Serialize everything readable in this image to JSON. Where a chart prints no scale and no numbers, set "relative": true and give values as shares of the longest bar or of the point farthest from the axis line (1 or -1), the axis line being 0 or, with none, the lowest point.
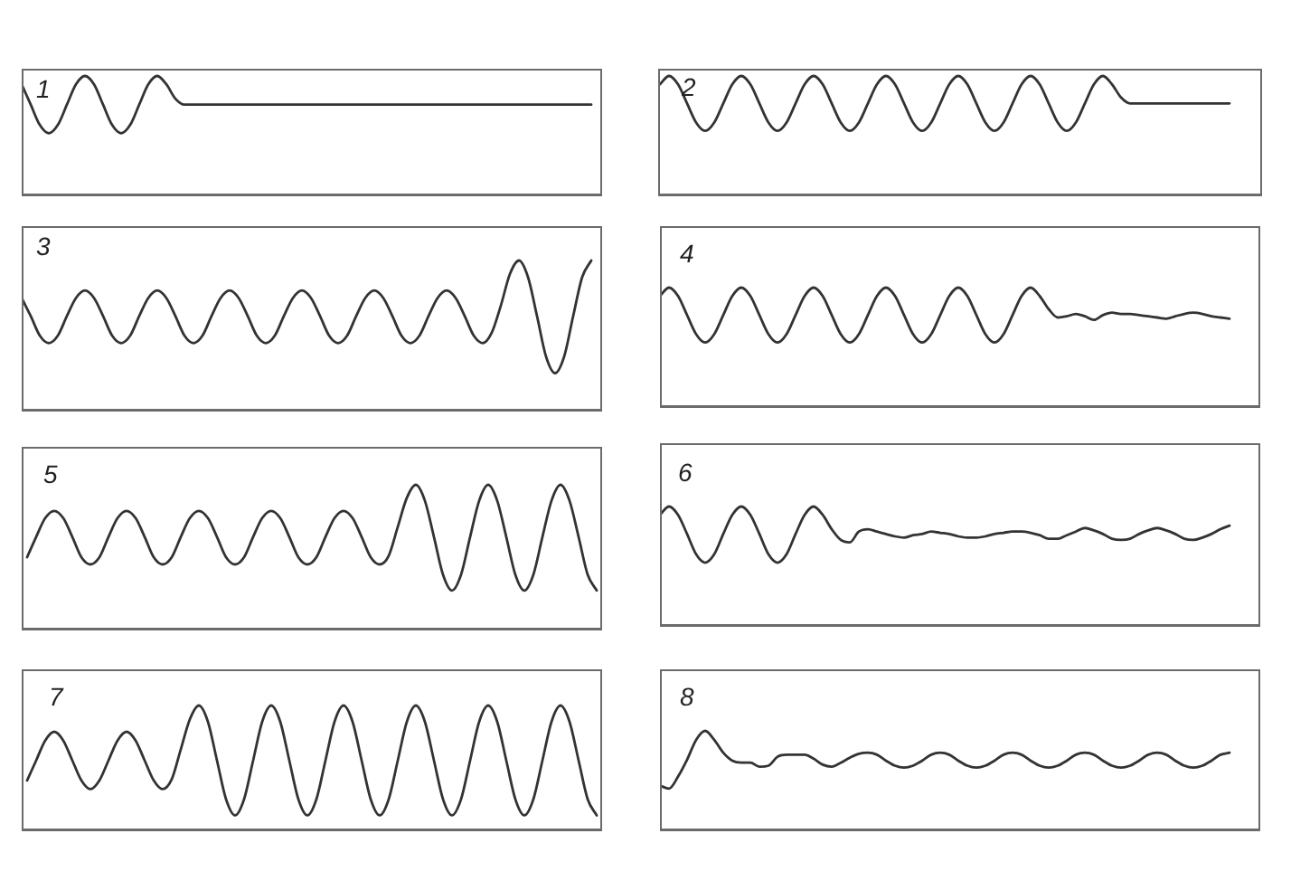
{
  "chart_data": [
    {
      "type": "line",
      "title": "1",
      "relative": true,
      "color": "#333333",
      "categories": [
        null,
        null,
        null,
        null,
        null,
        null,
        null,
        null,
        null,
        null,
        null,
        null,
        null,
        null,
        null,
        null,
        null,
        null,
        null,
        null,
        null,
        null,
        null,
        null,
        null,
        null,
        null,
        null,
        null,
        null,
        null,
        null,
        null,
        null,
        null,
        null,
        null,
        null,
        null,
        null,
        null,
        null,
        null,
        null,
        null,
        null,
        null,
        null,
        null,
        null,
        null,
        null,
        null,
        null,
        null,
        null,
        null,
        null,
        null,
        null,
        null,
        null,
        null,
        null
      ],
      "values": [
        0.93,
        0.76,
        0.59,
        0.52,
        0.59,
        0.76,
        0.93,
        1,
        0.93,
        0.76,
        0.59,
        0.52,
        0.59,
        0.76,
        0.93,
        1,
        0.93,
        0.81,
        0.76,
        0.76,
        0.76,
        0.76,
        0.76,
        0.76,
        0.76,
        0.76,
        0.76,
        0.76,
        0.76,
        0.76,
        0.76,
        0.76,
        0.76,
        0.76,
        0.76,
        0.76,
        0.76,
        0.76,
        0.76,
        0.76,
        0.76,
        0.76,
        0.76,
        0.76,
        0.76,
        0.76,
        0.76,
        0.76,
        0.76,
        0.76,
        0.76,
        0.76,
        0.76,
        0.76,
        0.76,
        0.76,
        0.76,
        0.76,
        0.76,
        0.76,
        0.76,
        0.76,
        0.76,
        0.76
      ]
    },
    {
      "type": "line",
      "title": "2",
      "relative": true,
      "color": "#333333",
      "categories": [
        null,
        null,
        null,
        null,
        null,
        null,
        null,
        null,
        null,
        null,
        null,
        null,
        null,
        null,
        null,
        null,
        null,
        null,
        null,
        null,
        null,
        null,
        null,
        null,
        null,
        null,
        null,
        null,
        null,
        null,
        null,
        null,
        null,
        null,
        null,
        null,
        null,
        null,
        null,
        null,
        null,
        null,
        null,
        null,
        null,
        null,
        null,
        null,
        null,
        null,
        null,
        null,
        null,
        null,
        null,
        null,
        null,
        null,
        null,
        null,
        null,
        null,
        null,
        null
      ],
      "values": [
        0.93,
        1,
        0.93,
        0.77,
        0.61,
        0.54,
        0.61,
        0.77,
        0.93,
        1,
        0.93,
        0.77,
        0.61,
        0.54,
        0.61,
        0.77,
        0.93,
        1,
        0.93,
        0.77,
        0.61,
        0.54,
        0.61,
        0.77,
        0.93,
        1,
        0.93,
        0.77,
        0.61,
        0.54,
        0.61,
        0.77,
        0.93,
        1,
        0.93,
        0.77,
        0.61,
        0.54,
        0.61,
        0.77,
        0.93,
        1,
        0.93,
        0.77,
        0.61,
        0.54,
        0.61,
        0.77,
        0.93,
        1,
        0.93,
        0.82,
        0.77,
        0.77,
        0.77,
        0.77,
        0.77,
        0.77,
        0.77,
        0.77,
        0.77,
        0.77,
        0.77,
        0.77
      ]
    },
    {
      "type": "line",
      "title": "3",
      "relative": true,
      "color": "#333333",
      "categories": [
        null,
        null,
        null,
        null,
        null,
        null,
        null,
        null,
        null,
        null,
        null,
        null,
        null,
        null,
        null,
        null,
        null,
        null,
        null,
        null,
        null,
        null,
        null,
        null,
        null,
        null,
        null,
        null,
        null,
        null,
        null,
        null,
        null,
        null,
        null,
        null,
        null,
        null,
        null,
        null,
        null,
        null,
        null,
        null,
        null,
        null,
        null,
        null,
        null,
        null,
        null,
        null,
        null,
        null,
        null,
        null,
        null,
        null,
        null,
        null,
        null,
        null,
        null,
        null
      ],
      "values": [
        0.75,
        0.63,
        0.5,
        0.45,
        0.5,
        0.63,
        0.75,
        0.8,
        0.75,
        0.63,
        0.5,
        0.45,
        0.5,
        0.63,
        0.75,
        0.8,
        0.75,
        0.63,
        0.5,
        0.45,
        0.5,
        0.63,
        0.75,
        0.8,
        0.75,
        0.63,
        0.5,
        0.45,
        0.5,
        0.63,
        0.75,
        0.8,
        0.75,
        0.63,
        0.5,
        0.45,
        0.5,
        0.63,
        0.75,
        0.8,
        0.75,
        0.63,
        0.5,
        0.45,
        0.5,
        0.63,
        0.75,
        0.8,
        0.75,
        0.63,
        0.5,
        0.45,
        0.52,
        0.7,
        0.91,
        1,
        0.89,
        0.63,
        0.36,
        0.25,
        0.36,
        0.63,
        0.89,
        1
      ]
    },
    {
      "type": "line",
      "title": "4",
      "relative": true,
      "color": "#333333",
      "categories": [
        null,
        null,
        null,
        null,
        null,
        null,
        null,
        null,
        null,
        null,
        null,
        null,
        null,
        null,
        null,
        null,
        null,
        null,
        null,
        null,
        null,
        null,
        null,
        null,
        null,
        null,
        null,
        null,
        null,
        null,
        null,
        null,
        null,
        null,
        null,
        null,
        null,
        null,
        null,
        null,
        null,
        null,
        null,
        null,
        null,
        null,
        null,
        null,
        null,
        null,
        null,
        null,
        null,
        null,
        null,
        null,
        null,
        null,
        null,
        null,
        null,
        null,
        null,
        null
      ],
      "values": [
        0.93,
        1,
        0.93,
        0.77,
        0.61,
        0.54,
        0.61,
        0.77,
        0.93,
        1,
        0.93,
        0.77,
        0.61,
        0.54,
        0.61,
        0.77,
        0.93,
        1,
        0.93,
        0.77,
        0.61,
        0.54,
        0.61,
        0.77,
        0.93,
        1,
        0.93,
        0.77,
        0.61,
        0.54,
        0.61,
        0.77,
        0.93,
        1,
        0.93,
        0.77,
        0.61,
        0.54,
        0.61,
        0.77,
        0.93,
        1,
        0.93,
        0.82,
        0.75,
        0.76,
        0.78,
        0.76,
        0.73,
        0.77,
        0.79,
        0.78,
        0.78,
        0.77,
        0.76,
        0.75,
        0.74,
        0.76,
        0.78,
        0.79,
        0.78,
        0.76,
        0.75,
        0.74
      ]
    },
    {
      "type": "line",
      "title": "5",
      "relative": true,
      "color": "#333333",
      "categories": [
        null,
        null,
        null,
        null,
        null,
        null,
        null,
        null,
        null,
        null,
        null,
        null,
        null,
        null,
        null,
        null,
        null,
        null,
        null,
        null,
        null,
        null,
        null,
        null,
        null,
        null,
        null,
        null,
        null,
        null,
        null,
        null,
        null,
        null,
        null,
        null,
        null,
        null,
        null,
        null,
        null,
        null,
        null,
        null,
        null,
        null,
        null,
        null,
        null,
        null,
        null,
        null,
        null,
        null,
        null,
        null,
        null,
        null,
        null,
        null,
        null,
        null,
        null,
        null
      ],
      "values": [
        0.5,
        0.64,
        0.77,
        0.82,
        0.77,
        0.64,
        0.5,
        0.45,
        0.5,
        0.64,
        0.77,
        0.82,
        0.77,
        0.64,
        0.5,
        0.45,
        0.5,
        0.64,
        0.77,
        0.82,
        0.77,
        0.64,
        0.5,
        0.45,
        0.5,
        0.64,
        0.77,
        0.82,
        0.77,
        0.64,
        0.5,
        0.45,
        0.5,
        0.64,
        0.77,
        0.82,
        0.77,
        0.64,
        0.5,
        0.45,
        0.51,
        0.71,
        0.91,
        1,
        0.89,
        0.64,
        0.38,
        0.27,
        0.38,
        0.64,
        0.89,
        1,
        0.89,
        0.64,
        0.38,
        0.27,
        0.38,
        0.64,
        0.89,
        1,
        0.89,
        0.64,
        0.38,
        0.27
      ]
    },
    {
      "type": "line",
      "title": "6",
      "relative": true,
      "color": "#333333",
      "categories": [
        null,
        null,
        null,
        null,
        null,
        null,
        null,
        null,
        null,
        null,
        null,
        null,
        null,
        null,
        null,
        null,
        null,
        null,
        null,
        null,
        null,
        null,
        null,
        null,
        null,
        null,
        null,
        null,
        null,
        null,
        null,
        null,
        null,
        null,
        null,
        null,
        null,
        null,
        null,
        null,
        null,
        null,
        null,
        null,
        null,
        null,
        null,
        null,
        null,
        null,
        null,
        null,
        null,
        null,
        null,
        null,
        null,
        null,
        null,
        null,
        null,
        null,
        null,
        null
      ],
      "values": [
        0.93,
        1,
        0.93,
        0.77,
        0.6,
        0.53,
        0.6,
        0.77,
        0.93,
        1,
        0.93,
        0.77,
        0.6,
        0.53,
        0.6,
        0.77,
        0.93,
        1,
        0.93,
        0.81,
        0.72,
        0.7,
        0.79,
        0.81,
        0.79,
        0.77,
        0.75,
        0.74,
        0.76,
        0.77,
        0.79,
        0.78,
        0.77,
        0.75,
        0.74,
        0.74,
        0.75,
        0.77,
        0.78,
        0.79,
        0.79,
        0.78,
        0.76,
        0.73,
        0.73,
        0.76,
        0.79,
        0.82,
        0.8,
        0.77,
        0.73,
        0.72,
        0.73,
        0.77,
        0.8,
        0.82,
        0.8,
        0.77,
        0.73,
        0.72,
        0.74,
        0.77,
        0.81,
        0.84
      ]
    },
    {
      "type": "line",
      "title": "7",
      "relative": true,
      "color": "#333333",
      "categories": [
        null,
        null,
        null,
        null,
        null,
        null,
        null,
        null,
        null,
        null,
        null,
        null,
        null,
        null,
        null,
        null,
        null,
        null,
        null,
        null,
        null,
        null,
        null,
        null,
        null,
        null,
        null,
        null,
        null,
        null,
        null,
        null,
        null,
        null,
        null,
        null,
        null,
        null,
        null,
        null,
        null,
        null,
        null,
        null,
        null,
        null,
        null,
        null,
        null,
        null,
        null,
        null,
        null,
        null,
        null,
        null,
        null,
        null,
        null,
        null,
        null,
        null,
        null,
        null
      ],
      "values": [
        0.4,
        0.56,
        0.72,
        0.79,
        0.72,
        0.56,
        0.4,
        0.33,
        0.4,
        0.56,
        0.72,
        0.79,
        0.72,
        0.56,
        0.4,
        0.33,
        0.41,
        0.65,
        0.89,
        1,
        0.87,
        0.56,
        0.25,
        0.12,
        0.25,
        0.56,
        0.87,
        1,
        0.87,
        0.56,
        0.25,
        0.12,
        0.25,
        0.56,
        0.87,
        1,
        0.87,
        0.56,
        0.25,
        0.12,
        0.25,
        0.56,
        0.87,
        1,
        0.87,
        0.56,
        0.25,
        0.12,
        0.25,
        0.56,
        0.87,
        1,
        0.87,
        0.56,
        0.25,
        0.12,
        0.25,
        0.56,
        0.87,
        1,
        0.87,
        0.56,
        0.25,
        0.12
      ]
    },
    {
      "type": "line",
      "title": "8",
      "relative": true,
      "color": "#333333",
      "categories": [
        null,
        null,
        null,
        null,
        null,
        null,
        null,
        null,
        null,
        null,
        null,
        null,
        null,
        null,
        null,
        null,
        null,
        null,
        null,
        null,
        null,
        null,
        null,
        null,
        null,
        null,
        null,
        null,
        null,
        null,
        null,
        null,
        null,
        null,
        null,
        null,
        null,
        null,
        null,
        null,
        null,
        null,
        null,
        null,
        null,
        null,
        null,
        null,
        null,
        null,
        null,
        null,
        null,
        null,
        null,
        null,
        null,
        null,
        null,
        null,
        null,
        null,
        null,
        null
      ],
      "values": [
        0.45,
        0.42,
        0.54,
        0.71,
        0.91,
        1,
        0.91,
        0.78,
        0.7,
        0.68,
        0.68,
        0.64,
        0.65,
        0.74,
        0.76,
        0.76,
        0.76,
        0.72,
        0.66,
        0.64,
        0.68,
        0.73,
        0.77,
        0.78,
        0.76,
        0.7,
        0.65,
        0.63,
        0.65,
        0.7,
        0.76,
        0.78,
        0.76,
        0.7,
        0.65,
        0.63,
        0.65,
        0.7,
        0.76,
        0.78,
        0.76,
        0.7,
        0.65,
        0.63,
        0.65,
        0.7,
        0.76,
        0.78,
        0.76,
        0.7,
        0.65,
        0.63,
        0.65,
        0.7,
        0.76,
        0.78,
        0.76,
        0.7,
        0.65,
        0.63,
        0.65,
        0.7,
        0.76,
        0.78
      ]
    }
  ]
}
